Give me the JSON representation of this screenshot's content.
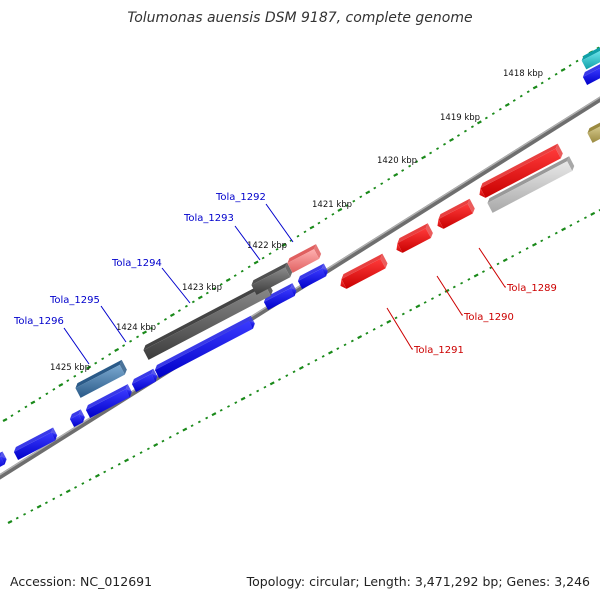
{
  "header": {
    "title": "Tolumonas auensis DSM 9187, complete genome"
  },
  "footer": {
    "accession": "Accession: NC_012691",
    "summary": "Topology: circular; Length: 3,471,292 bp; Genes: 3,246"
  },
  "colors": {
    "forward_strand": "#0000ff",
    "reverse_strand": "#ff0000",
    "gene_label_forward": "#0000cc",
    "gene_label_reverse": "#cc0000",
    "backbone": "#808080",
    "ruler_dots": "#1a8a1a",
    "highlight_dark_gray": "#555555",
    "highlight_steel_blue": "#4a82b0",
    "highlight_pink": "#f08080",
    "highlight_light_gray": "#c8c8c8",
    "highlight_cyan": "#20c0c8",
    "highlight_olive": "#b8a860"
  },
  "ruler": {
    "ticks": [
      "1418 kbp",
      "1419 kbp",
      "1420 kbp",
      "1421 kbp",
      "1422 kbp",
      "1423 kbp",
      "1424 kbp",
      "1425 kbp"
    ]
  },
  "gene_labels": {
    "forward": [
      "Tola_1292",
      "Tola_1293",
      "Tola_1294",
      "Tola_1295",
      "Tola_1296"
    ],
    "reverse": [
      "Tola_1289",
      "Tola_1290",
      "Tola_1291"
    ]
  }
}
